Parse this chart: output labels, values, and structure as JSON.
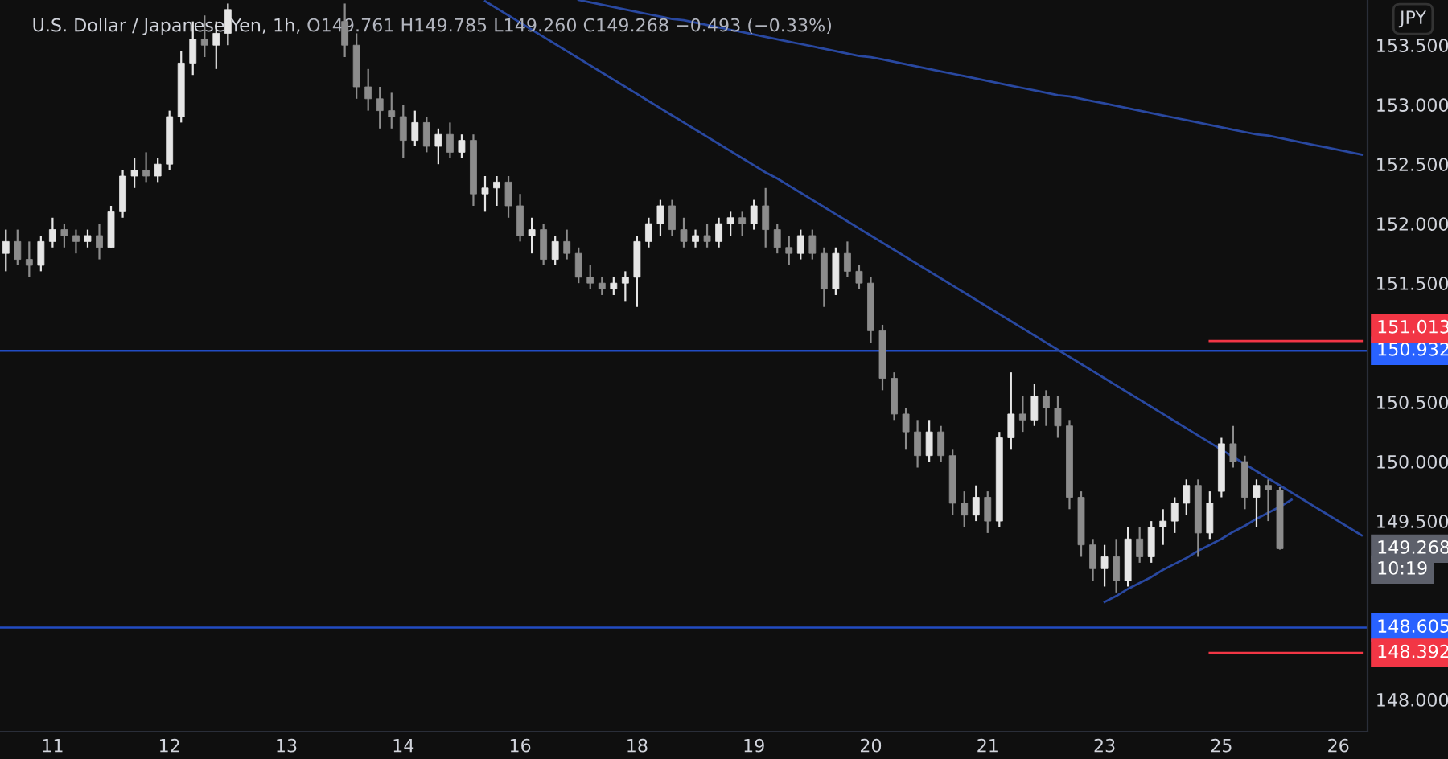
{
  "chart_data": {
    "type": "candlestick",
    "title": "U.S. Dollar / Japanese Yen, 1h,",
    "subtitle": "O149.761 H149.785 L149.260 C149.268 −0.493 (−0.33%)",
    "categories": [
      null,
      null,
      null,
      null,
      "11",
      null,
      null,
      null,
      null,
      null,
      null,
      null,
      null,
      null,
      "12",
      null,
      null,
      null,
      null,
      null,
      null,
      null,
      null,
      null,
      "13",
      null,
      null,
      null,
      null,
      null,
      null,
      null,
      null,
      null,
      "14",
      null,
      null,
      null,
      null,
      null,
      null,
      null,
      null,
      null,
      "16",
      null,
      null,
      null,
      null,
      null,
      null,
      null,
      null,
      null,
      "18",
      null,
      null,
      null,
      null,
      null,
      null,
      null,
      null,
      null,
      "19",
      null,
      null,
      null,
      null,
      null,
      null,
      null,
      null,
      null,
      "20",
      null,
      null,
      null,
      null,
      null,
      null,
      null,
      null,
      null,
      "21",
      null,
      null,
      null,
      null,
      null,
      null,
      null,
      null,
      null,
      "23",
      null,
      null,
      null,
      null,
      null,
      null,
      null,
      null,
      null,
      "25",
      null,
      null,
      null,
      null,
      null,
      null,
      null,
      null,
      null,
      "26",
      null,
      null
    ],
    "ohlc": [
      [
        151.75,
        151.95,
        151.6,
        151.85
      ],
      [
        151.85,
        151.95,
        151.65,
        151.7
      ],
      [
        151.7,
        151.85,
        151.55,
        151.65
      ],
      [
        151.65,
        151.9,
        151.6,
        151.85
      ],
      [
        151.85,
        152.05,
        151.8,
        151.95
      ],
      [
        151.95,
        152.0,
        151.8,
        151.9
      ],
      [
        151.9,
        151.95,
        151.75,
        151.85
      ],
      [
        151.85,
        151.95,
        151.8,
        151.9
      ],
      [
        151.9,
        152.0,
        151.7,
        151.8
      ],
      [
        151.8,
        152.15,
        151.8,
        152.1
      ],
      [
        152.1,
        152.45,
        152.05,
        152.4
      ],
      [
        152.4,
        152.55,
        152.3,
        152.45
      ],
      [
        152.45,
        152.6,
        152.35,
        152.4
      ],
      [
        152.4,
        152.55,
        152.35,
        152.5
      ],
      [
        152.5,
        152.95,
        152.45,
        152.9
      ],
      [
        152.9,
        153.45,
        152.85,
        153.35
      ],
      [
        153.35,
        153.7,
        153.25,
        153.55
      ],
      [
        153.55,
        153.75,
        153.4,
        153.5
      ],
      [
        153.5,
        153.7,
        153.3,
        153.6
      ],
      [
        153.6,
        153.85,
        153.5,
        153.8
      ],
      null,
      null,
      null,
      null,
      null,
      null,
      null,
      null,
      null,
      [
        153.7,
        153.85,
        153.4,
        153.5
      ],
      [
        153.5,
        153.6,
        153.05,
        153.15
      ],
      [
        153.15,
        153.3,
        152.95,
        153.05
      ],
      [
        153.05,
        153.15,
        152.8,
        152.95
      ],
      [
        152.95,
        153.1,
        152.8,
        152.9
      ],
      [
        152.9,
        153.0,
        152.55,
        152.7
      ],
      [
        152.7,
        152.95,
        152.65,
        152.85
      ],
      [
        152.85,
        152.9,
        152.6,
        152.65
      ],
      [
        152.65,
        152.8,
        152.5,
        152.75
      ],
      [
        152.75,
        152.85,
        152.55,
        152.6
      ],
      [
        152.6,
        152.75,
        152.55,
        152.7
      ],
      [
        152.7,
        152.75,
        152.15,
        152.25
      ],
      [
        152.25,
        152.4,
        152.1,
        152.3
      ],
      [
        152.3,
        152.4,
        152.15,
        152.35
      ],
      [
        152.35,
        152.4,
        152.05,
        152.15
      ],
      [
        152.15,
        152.25,
        151.85,
        151.9
      ],
      [
        151.9,
        152.05,
        151.75,
        151.95
      ],
      [
        151.95,
        152.0,
        151.65,
        151.7
      ],
      [
        151.7,
        151.9,
        151.65,
        151.85
      ],
      [
        151.85,
        151.95,
        151.7,
        151.75
      ],
      [
        151.75,
        151.8,
        151.5,
        151.55
      ],
      [
        151.55,
        151.65,
        151.45,
        151.5
      ],
      [
        151.5,
        151.55,
        151.4,
        151.45
      ],
      [
        151.45,
        151.55,
        151.4,
        151.5
      ],
      [
        151.5,
        151.6,
        151.35,
        151.55
      ],
      [
        151.55,
        151.9,
        151.3,
        151.85
      ],
      [
        151.85,
        152.05,
        151.8,
        152.0
      ],
      [
        152.0,
        152.2,
        151.9,
        152.15
      ],
      [
        152.15,
        152.2,
        151.9,
        151.95
      ],
      [
        151.95,
        152.05,
        151.8,
        151.85
      ],
      [
        151.85,
        151.95,
        151.8,
        151.9
      ],
      [
        151.9,
        152.0,
        151.8,
        151.85
      ],
      [
        151.85,
        152.05,
        151.8,
        152.0
      ],
      [
        152.0,
        152.1,
        151.9,
        152.05
      ],
      [
        152.05,
        152.1,
        151.9,
        152.0
      ],
      [
        152.0,
        152.2,
        151.95,
        152.15
      ],
      [
        152.15,
        152.3,
        151.8,
        151.95
      ],
      [
        151.95,
        152.0,
        151.75,
        151.8
      ],
      [
        151.8,
        151.9,
        151.65,
        151.75
      ],
      [
        151.75,
        151.95,
        151.7,
        151.9
      ],
      [
        151.9,
        151.95,
        151.7,
        151.75
      ],
      [
        151.75,
        151.8,
        151.3,
        151.45
      ],
      [
        151.45,
        151.8,
        151.4,
        151.75
      ],
      [
        151.75,
        151.85,
        151.55,
        151.6
      ],
      [
        151.6,
        151.65,
        151.45,
        151.5
      ],
      [
        151.5,
        151.55,
        151.0,
        151.1
      ],
      [
        151.1,
        151.15,
        150.6,
        150.7
      ],
      [
        150.7,
        150.75,
        150.35,
        150.4
      ],
      [
        150.4,
        150.45,
        150.1,
        150.25
      ],
      [
        150.25,
        150.35,
        149.95,
        150.05
      ],
      [
        150.05,
        150.35,
        150.0,
        150.25
      ],
      [
        150.25,
        150.3,
        150.0,
        150.05
      ],
      [
        150.05,
        150.1,
        149.55,
        149.65
      ],
      [
        149.65,
        149.75,
        149.45,
        149.55
      ],
      [
        149.55,
        149.8,
        149.5,
        149.7
      ],
      [
        149.7,
        149.75,
        149.4,
        149.5
      ],
      [
        149.5,
        150.25,
        149.45,
        150.2
      ],
      [
        150.2,
        150.75,
        150.1,
        150.4
      ],
      [
        150.4,
        150.55,
        150.25,
        150.35
      ],
      [
        150.35,
        150.65,
        150.3,
        150.55
      ],
      [
        150.55,
        150.6,
        150.3,
        150.45
      ],
      [
        150.45,
        150.55,
        150.2,
        150.3
      ],
      [
        150.3,
        150.35,
        149.6,
        149.7
      ],
      [
        149.7,
        149.75,
        149.2,
        149.3
      ],
      [
        149.3,
        149.35,
        149.0,
        149.1
      ],
      [
        149.1,
        149.3,
        148.95,
        149.2
      ],
      [
        149.2,
        149.35,
        148.9,
        149.0
      ],
      [
        149.0,
        149.45,
        148.95,
        149.35
      ],
      [
        149.35,
        149.45,
        149.15,
        149.2
      ],
      [
        149.2,
        149.5,
        149.15,
        149.45
      ],
      [
        149.45,
        149.6,
        149.3,
        149.5
      ],
      [
        149.5,
        149.7,
        149.4,
        149.65
      ],
      [
        149.65,
        149.85,
        149.55,
        149.8
      ],
      [
        149.8,
        149.85,
        149.2,
        149.4
      ],
      [
        149.4,
        149.75,
        149.35,
        149.65
      ],
      [
        149.75,
        150.2,
        149.7,
        150.15
      ],
      [
        150.15,
        150.3,
        149.95,
        150.0
      ],
      [
        150.0,
        150.05,
        149.6,
        149.7
      ],
      [
        149.7,
        149.85,
        149.45,
        149.8
      ],
      [
        149.8,
        149.85,
        149.5,
        149.761
      ],
      [
        149.761,
        149.785,
        149.26,
        149.268
      ],
      null,
      null,
      null,
      null,
      null,
      null,
      null
    ],
    "series": [
      {
        "type": "line",
        "color": "#2948a0",
        "values": [
          null,
          null,
          null,
          null,
          null,
          null,
          null,
          null,
          null,
          null,
          null,
          null,
          null,
          null,
          null,
          null,
          null,
          null,
          null,
          null,
          null,
          null,
          null,
          null,
          null,
          null,
          null,
          null,
          null,
          null,
          null,
          null,
          null,
          null,
          null,
          null,
          null,
          null,
          null,
          null,
          null,
          153.87,
          153.81,
          153.75,
          153.69,
          153.63,
          153.57,
          153.51,
          153.45,
          153.39,
          153.33,
          153.27,
          153.21,
          153.15,
          153.09,
          153.03,
          152.97,
          152.91,
          152.85,
          152.79,
          152.73,
          152.67,
          152.61,
          152.55,
          152.49,
          152.43,
          152.38,
          152.32,
          152.26,
          152.2,
          152.14,
          152.08,
          152.02,
          151.96,
          151.9,
          151.84,
          151.78,
          151.72,
          151.66,
          151.6,
          151.54,
          151.48,
          151.42,
          151.36,
          151.3,
          151.24,
          151.18,
          151.12,
          151.06,
          151.0,
          150.94,
          150.88,
          150.82,
          150.76,
          150.7,
          150.64,
          150.58,
          150.52,
          150.46,
          150.4,
          150.34,
          150.28,
          150.22,
          150.16,
          150.1,
          150.04,
          149.98,
          149.92,
          149.86,
          149.8,
          149.74,
          149.68,
          149.62,
          149.56,
          149.5,
          149.44,
          149.38
        ]
      },
      {
        "type": "line",
        "color": "#2948a0",
        "values": [
          null,
          null,
          null,
          null,
          null,
          null,
          null,
          null,
          null,
          null,
          null,
          null,
          null,
          null,
          null,
          null,
          null,
          null,
          null,
          null,
          null,
          null,
          null,
          null,
          null,
          null,
          null,
          null,
          null,
          null,
          null,
          null,
          null,
          null,
          null,
          null,
          null,
          null,
          null,
          null,
          null,
          null,
          null,
          null,
          null,
          null,
          null,
          null,
          null,
          153.88,
          153.86,
          153.84,
          153.82,
          153.8,
          153.78,
          153.76,
          153.74,
          153.72,
          153.71,
          153.69,
          153.67,
          153.65,
          153.63,
          153.61,
          153.59,
          153.57,
          153.55,
          153.53,
          153.51,
          153.49,
          153.47,
          153.45,
          153.43,
          153.41,
          153.4,
          153.38,
          153.36,
          153.34,
          153.32,
          153.3,
          153.28,
          153.26,
          153.24,
          153.22,
          153.2,
          153.18,
          153.16,
          153.14,
          153.12,
          153.1,
          153.08,
          153.07,
          153.05,
          153.03,
          153.01,
          152.99,
          152.97,
          152.95,
          152.93,
          152.91,
          152.89,
          152.87,
          152.85,
          152.83,
          152.81,
          152.79,
          152.77,
          152.75,
          152.74,
          152.72,
          152.7,
          152.68,
          152.66,
          152.64,
          152.62,
          152.6,
          152.58
        ]
      },
      {
        "type": "line",
        "color": "#2948a0",
        "values": [
          null,
          null,
          null,
          null,
          null,
          null,
          null,
          null,
          null,
          null,
          null,
          null,
          null,
          null,
          null,
          null,
          null,
          null,
          null,
          null,
          null,
          null,
          null,
          null,
          null,
          null,
          null,
          null,
          null,
          null,
          null,
          null,
          null,
          null,
          null,
          null,
          null,
          null,
          null,
          null,
          null,
          null,
          null,
          null,
          null,
          null,
          null,
          null,
          null,
          null,
          null,
          null,
          null,
          null,
          null,
          null,
          null,
          null,
          null,
          null,
          null,
          null,
          null,
          null,
          null,
          null,
          null,
          null,
          null,
          null,
          null,
          null,
          null,
          null,
          null,
          null,
          null,
          null,
          null,
          null,
          null,
          null,
          null,
          null,
          null,
          null,
          null,
          null,
          null,
          null,
          null,
          null,
          null,
          null,
          148.82,
          148.87,
          148.93,
          148.98,
          149.03,
          149.09,
          149.14,
          149.19,
          149.25,
          149.3,
          149.35,
          149.41,
          149.46,
          149.52,
          149.57,
          149.62,
          149.68,
          null,
          null,
          null,
          null,
          null,
          null
        ]
      },
      {
        "type": "line",
        "color": "#f23645",
        "values": [
          null,
          null,
          null,
          null,
          null,
          null,
          null,
          null,
          null,
          null,
          null,
          null,
          null,
          null,
          null,
          null,
          null,
          null,
          null,
          null,
          null,
          null,
          null,
          null,
          null,
          null,
          null,
          null,
          null,
          null,
          null,
          null,
          null,
          null,
          null,
          null,
          null,
          null,
          null,
          null,
          null,
          null,
          null,
          null,
          null,
          null,
          null,
          null,
          null,
          null,
          null,
          null,
          null,
          null,
          null,
          null,
          null,
          null,
          null,
          null,
          null,
          null,
          null,
          null,
          null,
          null,
          null,
          null,
          null,
          null,
          null,
          null,
          null,
          null,
          null,
          null,
          null,
          null,
          null,
          null,
          null,
          null,
          null,
          null,
          null,
          null,
          null,
          null,
          null,
          null,
          null,
          null,
          null,
          null,
          null,
          null,
          null,
          null,
          null,
          null,
          null,
          null,
          null,
          151.013,
          151.013,
          151.013,
          151.013,
          151.013,
          151.013,
          151.013,
          151.013,
          151.013,
          151.013,
          151.013,
          151.013,
          151.013,
          151.013
        ]
      },
      {
        "type": "line",
        "color": "#f23645",
        "values": [
          null,
          null,
          null,
          null,
          null,
          null,
          null,
          null,
          null,
          null,
          null,
          null,
          null,
          null,
          null,
          null,
          null,
          null,
          null,
          null,
          null,
          null,
          null,
          null,
          null,
          null,
          null,
          null,
          null,
          null,
          null,
          null,
          null,
          null,
          null,
          null,
          null,
          null,
          null,
          null,
          null,
          null,
          null,
          null,
          null,
          null,
          null,
          null,
          null,
          null,
          null,
          null,
          null,
          null,
          null,
          null,
          null,
          null,
          null,
          null,
          null,
          null,
          null,
          null,
          null,
          null,
          null,
          null,
          null,
          null,
          null,
          null,
          null,
          null,
          null,
          null,
          null,
          null,
          null,
          null,
          null,
          null,
          null,
          null,
          null,
          null,
          null,
          null,
          null,
          null,
          null,
          null,
          null,
          null,
          null,
          null,
          null,
          null,
          null,
          null,
          null,
          null,
          null,
          148.392,
          148.392,
          148.392,
          148.392,
          148.392,
          148.392,
          148.392,
          148.392,
          148.392,
          148.392,
          148.392,
          148.392,
          148.392,
          148.392
        ]
      }
    ],
    "ref_lines": [
      {
        "axis": "y",
        "value": 150.932,
        "label": "150.932",
        "color": "#2962ff"
      },
      {
        "axis": "y",
        "value": 148.605,
        "label": "148.605",
        "color": "#2962ff"
      }
    ],
    "annotations": [
      "151.013",
      "148.392",
      "149.268",
      "10:19",
      "JPY"
    ],
    "ylim": [
      147.73,
      153.88
    ],
    "yticks": [
      {
        "value": 148,
        "label": "148.000"
      },
      {
        "value": 149.5,
        "label": "149.500"
      },
      {
        "value": 150,
        "label": "150.000"
      },
      {
        "value": 150.5,
        "label": "150.500"
      },
      {
        "value": 151.5,
        "label": "151.500"
      },
      {
        "value": 152,
        "label": "152.000"
      },
      {
        "value": 152.5,
        "label": "152.500"
      },
      {
        "value": 153,
        "label": "153.000"
      },
      {
        "value": 153.5,
        "label": "153.500"
      }
    ],
    "grid": false,
    "legend": false
  }
}
